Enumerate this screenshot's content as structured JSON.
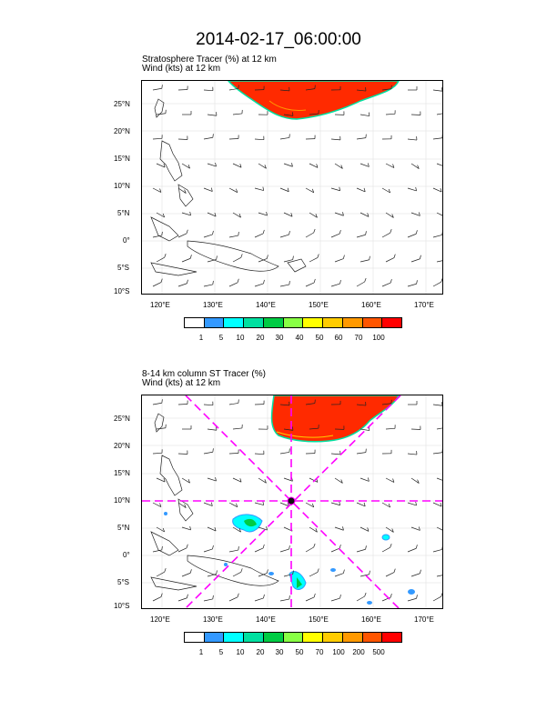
{
  "title": "2014-02-17_06:00:00",
  "panels": [
    {
      "label_line1": "Stratosphere Tracer   (%)     at   12 km",
      "label_line2": "Wind    (kts)      at   12 km",
      "lat_ticks": [
        "25°N",
        "20°N",
        "15°N",
        "10°N",
        "5°N",
        "0°",
        "5°S",
        "10°S"
      ],
      "lon_ticks": [
        "120°E",
        "130°E",
        "140°E",
        "150°E",
        "160°E",
        "170°E"
      ],
      "colorbar_labels": [
        "1",
        "5",
        "10",
        "20",
        "30",
        "40",
        "50",
        "60",
        "70",
        "100"
      ],
      "colorbar_colors": [
        "#ffffff",
        "#3399ff",
        "#00ffff",
        "#00e0a0",
        "#00cc44",
        "#88ff44",
        "#ffff00",
        "#ffcc00",
        "#ff9900",
        "#ff5500",
        "#ff0000"
      ]
    },
    {
      "label_line1": "8-14 km column ST Tracer    (%)",
      "label_line2": "Wind    (kts)      at   12 km",
      "lat_ticks": [
        "25°N",
        "20°N",
        "15°N",
        "10°N",
        "5°N",
        "0°",
        "5°S",
        "10°S"
      ],
      "lon_ticks": [
        "120°E",
        "130°E",
        "140°E",
        "150°E",
        "160°E",
        "170°E"
      ],
      "colorbar_labels": [
        "1",
        "5",
        "10",
        "20",
        "30",
        "50",
        "70",
        "100",
        "200",
        "500"
      ],
      "colorbar_colors": [
        "#ffffff",
        "#3399ff",
        "#00ffff",
        "#00e0a0",
        "#00cc44",
        "#88ff44",
        "#ffff00",
        "#ffcc00",
        "#ff9900",
        "#ff5500",
        "#ff0000"
      ],
      "cross_section_color": "#ff00ff"
    }
  ]
}
